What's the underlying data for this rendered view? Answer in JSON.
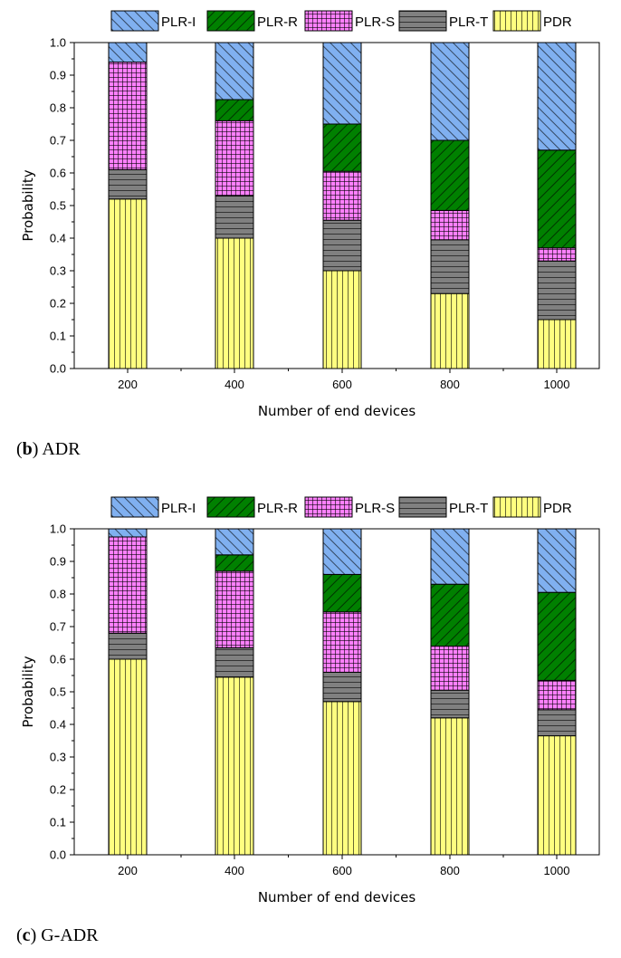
{
  "chart_data": [
    {
      "type": "bar",
      "stacked": true,
      "title": "",
      "caption_letter": "b",
      "caption_text": "ADR",
      "xlabel": "Number of end devices",
      "ylabel": "Probability",
      "categories": [
        "200",
        "400",
        "600",
        "800",
        "1000"
      ],
      "ylim": [
        0,
        1.0
      ],
      "yticks": [
        "0.0",
        "0.1",
        "0.2",
        "0.3",
        "0.4",
        "0.5",
        "0.6",
        "0.7",
        "0.8",
        "0.9",
        "1.0"
      ],
      "legend_position": "top",
      "series": [
        {
          "name": "PDR",
          "values": [
            0.52,
            0.4,
            0.3,
            0.23,
            0.15
          ],
          "color": "#ffff80",
          "pattern": "vertical"
        },
        {
          "name": "PLR-T",
          "values": [
            0.09,
            0.13,
            0.155,
            0.165,
            0.18
          ],
          "color": "#808080",
          "pattern": "horizontal"
        },
        {
          "name": "PLR-S",
          "values": [
            0.33,
            0.23,
            0.15,
            0.09,
            0.04
          ],
          "color": "#ff80ff",
          "pattern": "grid"
        },
        {
          "name": "PLR-R",
          "values": [
            0.0,
            0.065,
            0.145,
            0.215,
            0.3
          ],
          "color": "#008000",
          "pattern": "diag-up"
        },
        {
          "name": "PLR-I",
          "values": [
            0.06,
            0.175,
            0.25,
            0.3,
            0.33
          ],
          "color": "#80b0f0",
          "pattern": "diag-down"
        }
      ]
    },
    {
      "type": "bar",
      "stacked": true,
      "title": "",
      "caption_letter": "c",
      "caption_text": "G-ADR",
      "xlabel": "Number of end devices",
      "ylabel": "Probability",
      "categories": [
        "200",
        "400",
        "600",
        "800",
        "1000"
      ],
      "ylim": [
        0,
        1.0
      ],
      "yticks": [
        "0.0",
        "0.1",
        "0.2",
        "0.3",
        "0.4",
        "0.5",
        "0.6",
        "0.7",
        "0.8",
        "0.9",
        "1.0"
      ],
      "legend_position": "top",
      "series": [
        {
          "name": "PDR",
          "values": [
            0.6,
            0.545,
            0.47,
            0.42,
            0.365
          ],
          "color": "#ffff80",
          "pattern": "vertical"
        },
        {
          "name": "PLR-T",
          "values": [
            0.08,
            0.09,
            0.09,
            0.085,
            0.08
          ],
          "color": "#808080",
          "pattern": "horizontal"
        },
        {
          "name": "PLR-S",
          "values": [
            0.295,
            0.235,
            0.185,
            0.135,
            0.09
          ],
          "color": "#ff80ff",
          "pattern": "grid"
        },
        {
          "name": "PLR-R",
          "values": [
            0.0,
            0.05,
            0.115,
            0.19,
            0.27
          ],
          "color": "#008000",
          "pattern": "diag-up"
        },
        {
          "name": "PLR-I",
          "values": [
            0.025,
            0.08,
            0.14,
            0.17,
            0.195
          ],
          "color": "#80b0f0",
          "pattern": "diag-down"
        }
      ]
    }
  ]
}
